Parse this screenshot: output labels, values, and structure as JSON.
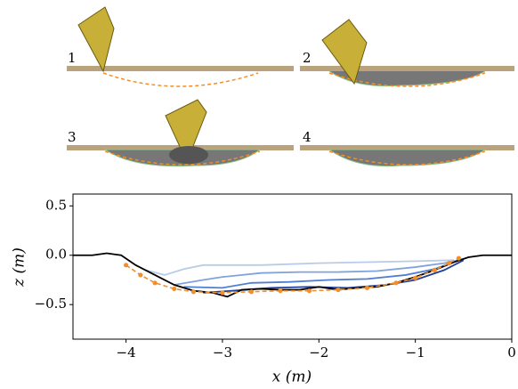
{
  "chart_data": {
    "type": "line",
    "panel_labels": [
      "1",
      "2",
      "3",
      "4"
    ],
    "xlabel": "x (m)",
    "ylabel": "z (m)",
    "xlim": [
      -4.55,
      0
    ],
    "ylim": [
      -0.85,
      0.62
    ],
    "xticks": [
      {
        "value": -4,
        "label": "−4"
      },
      {
        "value": -3,
        "label": "−3"
      },
      {
        "value": -2,
        "label": "−2"
      },
      {
        "value": -1,
        "label": "−1"
      },
      0
    ],
    "yticks": [
      {
        "value": 0.5,
        "label": "0.5"
      },
      {
        "value": 0,
        "label": "0.0"
      },
      {
        "value": -0.5,
        "label": "−0.5"
      }
    ],
    "series": [
      {
        "color": "#b9cbe6",
        "x": [
          -3.8,
          -3.6,
          -3.4,
          -3.2,
          -3.0,
          -2.6,
          -2.0,
          -1.5,
          -1.0,
          -0.6
        ],
        "values": [
          -0.15,
          -0.2,
          -0.14,
          -0.1,
          -0.1,
          -0.1,
          -0.08,
          -0.07,
          -0.06,
          -0.05
        ]
      },
      {
        "color": "#7fa3dc",
        "x": [
          -3.5,
          -3.2,
          -3.0,
          -2.6,
          -2.2,
          -1.8,
          -1.4,
          -1.0,
          -0.7,
          -0.5
        ],
        "values": [
          -0.3,
          -0.25,
          -0.22,
          -0.18,
          -0.17,
          -0.17,
          -0.16,
          -0.12,
          -0.08,
          -0.04
        ]
      },
      {
        "color": "#4f7fd0",
        "x": [
          -3.4,
          -3.0,
          -2.7,
          -2.3,
          -1.9,
          -1.5,
          -1.1,
          -0.8,
          -0.55
        ],
        "values": [
          -0.32,
          -0.33,
          -0.28,
          -0.27,
          -0.25,
          -0.24,
          -0.2,
          -0.14,
          -0.05
        ]
      },
      {
        "color": "#1f3f9a",
        "x": [
          -3.2,
          -2.9,
          -2.5,
          -2.1,
          -1.7,
          -1.3,
          -1.0,
          -0.7,
          -0.5
        ],
        "values": [
          -0.38,
          -0.36,
          -0.33,
          -0.32,
          -0.33,
          -0.3,
          -0.25,
          -0.15,
          -0.05
        ]
      },
      {
        "color": "#000000",
        "x": [
          -4.55,
          -4.35,
          -4.2,
          -4.05,
          -3.9,
          -3.7,
          -3.5,
          -3.3,
          -3.1,
          -2.95,
          -2.8,
          -2.6,
          -2.4,
          -2.2,
          -2.0,
          -1.8,
          -1.6,
          -1.4,
          -1.2,
          -1.0,
          -0.8,
          -0.6,
          -0.45,
          -0.3,
          0
        ],
        "values": [
          0,
          0,
          0.02,
          0,
          -0.1,
          -0.2,
          -0.3,
          -0.36,
          -0.38,
          -0.42,
          -0.35,
          -0.34,
          -0.35,
          -0.35,
          -0.32,
          -0.35,
          -0.33,
          -0.32,
          -0.28,
          -0.22,
          -0.15,
          -0.07,
          -0.02,
          0,
          0
        ]
      },
      {
        "color": "#f28e2b",
        "dashed": true,
        "marker": true,
        "x": [
          -4.0,
          -3.85,
          -3.7,
          -3.5,
          -3.3,
          -3.0,
          -2.7,
          -2.4,
          -2.1,
          -1.8,
          -1.5,
          -1.2,
          -1.0,
          -0.8,
          -0.65,
          -0.55
        ],
        "values": [
          -0.1,
          -0.2,
          -0.28,
          -0.34,
          -0.37,
          -0.38,
          -0.37,
          -0.36,
          -0.36,
          -0.35,
          -0.33,
          -0.28,
          -0.23,
          -0.15,
          -0.08,
          -0.03
        ]
      }
    ]
  }
}
